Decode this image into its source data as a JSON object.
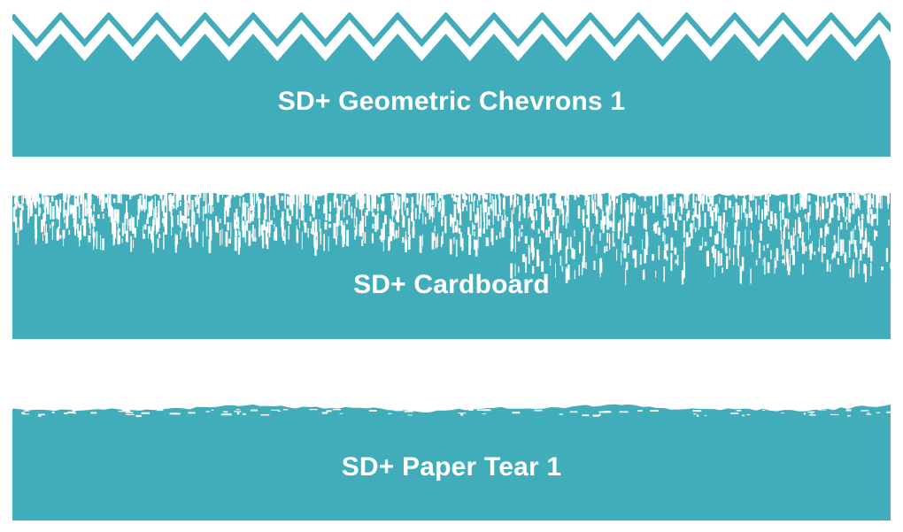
{
  "colors": {
    "accent": "#42adba",
    "background": "#ffffff",
    "label": "#ffffff"
  },
  "banners": [
    {
      "label": "SD+ Geometric Chevrons 1"
    },
    {
      "label": "SD+ Cardboard"
    },
    {
      "label": "SD+ Paper Tear 1"
    }
  ]
}
